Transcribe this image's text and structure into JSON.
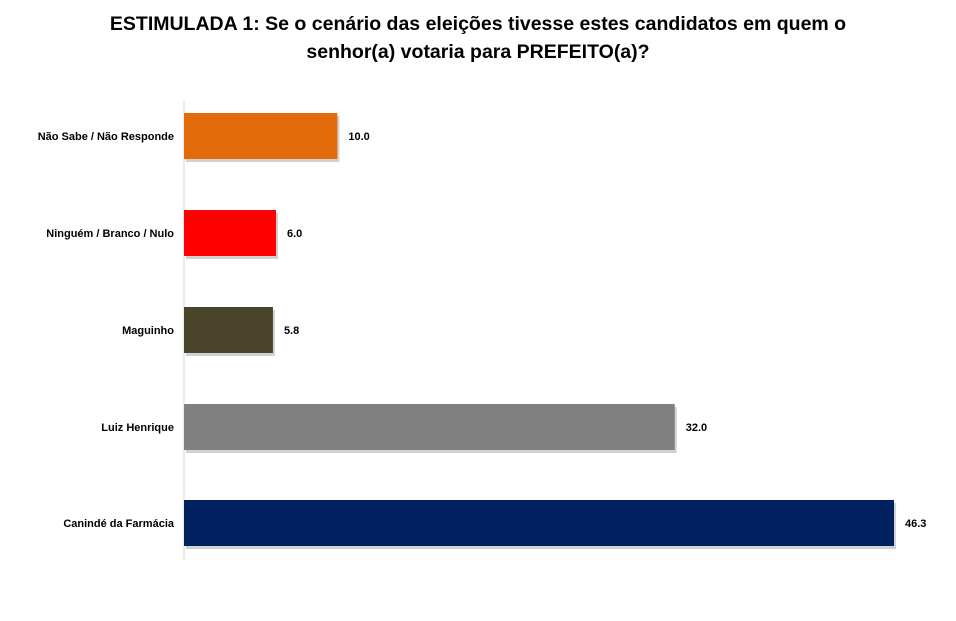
{
  "chart_data": {
    "type": "bar",
    "orientation": "horizontal",
    "title": "ESTIMULADA 1: Se o cenário das eleições tivesse estes candidatos em quem o senhor(a) votaria para PREFEITO(a)?",
    "categories": [
      "Não Sabe / Não Responde",
      "Ninguém / Branco / Nulo",
      "Maguinho",
      "Luiz Henrique",
      "Canindé da Farmácia"
    ],
    "values": [
      10.0,
      6.0,
      5.8,
      32.0,
      46.3
    ],
    "value_labels": [
      "10.0",
      "6.0",
      "5.8",
      "32.0",
      "46.3"
    ],
    "colors": [
      "#E36C0A",
      "#FF0000",
      "#4A452A",
      "#808080",
      "#002060"
    ],
    "xlim": [
      0,
      46.3
    ],
    "grid": false,
    "legend": "none"
  }
}
